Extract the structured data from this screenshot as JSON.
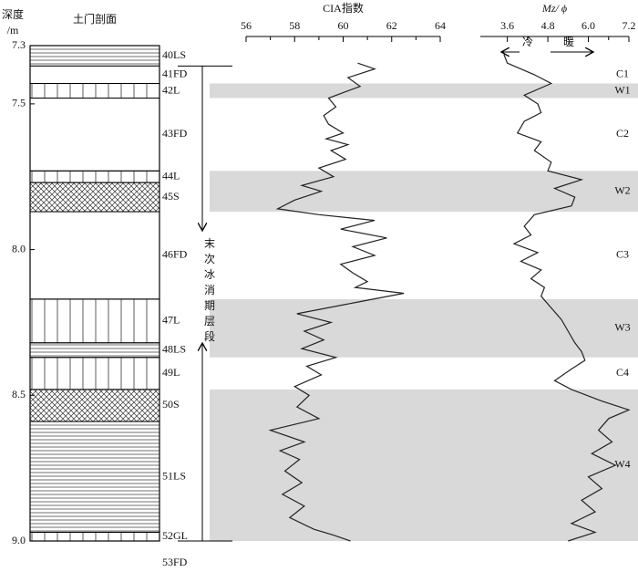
{
  "chart_data": [
    {
      "type": "column",
      "title": "土门剖面",
      "ylabel_lines": [
        "深度",
        "/m"
      ],
      "ylim": [
        7.3,
        9.0
      ],
      "yticks": [
        7.3,
        7.5,
        {
          "value": 8,
          "label": "8.0"
        },
        8.5,
        {
          "value": 9,
          "label": "9.0"
        }
      ],
      "layers": [
        {
          "name": "40LS",
          "top": 7.3,
          "bottom": 7.37,
          "pattern": "lines-h"
        },
        {
          "name": "41FD",
          "top": 7.37,
          "bottom": 7.43,
          "pattern": "none"
        },
        {
          "name": "42L",
          "top": 7.43,
          "bottom": 7.48,
          "pattern": "lines-v"
        },
        {
          "name": "43FD",
          "top": 7.48,
          "bottom": 7.73,
          "pattern": "none"
        },
        {
          "name": "44L",
          "top": 7.73,
          "bottom": 7.77,
          "pattern": "lines-v"
        },
        {
          "name": "45S",
          "top": 7.77,
          "bottom": 7.87,
          "pattern": "cross"
        },
        {
          "name": "46FD",
          "top": 7.87,
          "bottom": 8.17,
          "pattern": "none"
        },
        {
          "name": "47L",
          "top": 8.17,
          "bottom": 8.32,
          "pattern": "lines-v"
        },
        {
          "name": "48LS",
          "top": 8.32,
          "bottom": 8.37,
          "pattern": "lines-h"
        },
        {
          "name": "49L",
          "top": 8.37,
          "bottom": 8.48,
          "pattern": "lines-v"
        },
        {
          "name": "50S",
          "top": 8.48,
          "bottom": 8.59,
          "pattern": "cross"
        },
        {
          "name": "51LS",
          "top": 8.59,
          "bottom": 8.97,
          "pattern": "lines-h"
        },
        {
          "name": "52GL",
          "top": 8.97,
          "bottom": 9.0,
          "pattern": "lines-v"
        },
        {
          "name": "53FD",
          "top": 9.0,
          "bottom": null,
          "pattern": "none"
        }
      ],
      "zones": [
        {
          "name": "C1",
          "top": 7.37,
          "bottom": 7.43,
          "shaded": false
        },
        {
          "name": "W1",
          "top": 7.43,
          "bottom": 7.48,
          "shaded": true
        },
        {
          "name": "C2",
          "top": 7.48,
          "bottom": 7.73,
          "shaded": false
        },
        {
          "name": "W2",
          "top": 7.73,
          "bottom": 7.87,
          "shaded": true
        },
        {
          "name": "C3",
          "top": 7.87,
          "bottom": 8.17,
          "shaded": false
        },
        {
          "name": "W3",
          "top": 8.17,
          "bottom": 8.37,
          "shaded": true
        },
        {
          "name": "C4",
          "top": 8.37,
          "bottom": 8.48,
          "shaded": false
        },
        {
          "name": "W4",
          "top": 8.48,
          "bottom": 9.0,
          "shaded": true
        }
      ],
      "interval": {
        "label": "末次冰消期层段",
        "top": 7.37,
        "bottom": 9.0
      },
      "shade_color": "#d9d9d9"
    },
    {
      "type": "line",
      "title": "CIA指数",
      "color": "#222",
      "xlim": [
        56,
        64
      ],
      "xticks": [
        56,
        58,
        60,
        62,
        64
      ],
      "x": [
        7.36,
        7.38,
        7.41,
        7.44,
        7.48,
        7.51,
        7.54,
        7.57,
        7.6,
        7.62,
        7.64,
        7.66,
        7.69,
        7.72,
        7.75,
        7.78,
        7.8,
        7.83,
        7.86,
        7.88,
        7.9,
        7.93,
        7.96,
        7.99,
        8.02,
        8.05,
        8.08,
        8.11,
        8.13,
        8.15,
        8.18,
        8.22,
        8.25,
        8.28,
        8.31,
        8.34,
        8.37,
        8.4,
        8.43,
        8.47,
        8.5,
        8.54,
        8.58,
        8.62,
        8.66,
        8.69,
        8.72,
        8.76,
        8.8,
        8.84,
        8.88,
        8.92,
        8.96,
        8.98,
        9.0
      ],
      "values": [
        60.6,
        61.3,
        60.2,
        60.7,
        59.4,
        59.7,
        59.2,
        59.4,
        60.0,
        59.3,
        60.2,
        59.5,
        60.1,
        59.0,
        59.6,
        58.3,
        59.1,
        58.0,
        57.3,
        59.0,
        61.3,
        59.9,
        61.8,
        60.4,
        61.3,
        59.9,
        60.4,
        61.0,
        60.5,
        62.5,
        60.6,
        58.1,
        59.5,
        58.4,
        59.2,
        58.3,
        59.7,
        58.5,
        59.1,
        58.0,
        58.6,
        58.1,
        59.0,
        57.0,
        58.4,
        57.4,
        58.2,
        57.6,
        58.3,
        57.5,
        58.4,
        57.8,
        58.8,
        59.6,
        60.3
      ]
    },
    {
      "type": "line",
      "title": "Mz/ ϕ",
      "color": "#222",
      "xlim": [
        2.8,
        7.2
      ],
      "xticks": [
        3.6,
        4.8,
        {
          "value": 6,
          "label": "6.0"
        },
        7.2
      ],
      "annotations": [
        "冷",
        "暖"
      ],
      "x": [
        7.33,
        7.36,
        7.4,
        7.43,
        7.47,
        7.5,
        7.53,
        7.56,
        7.6,
        7.63,
        7.66,
        7.7,
        7.73,
        7.76,
        7.79,
        7.82,
        7.85,
        7.88,
        7.92,
        7.95,
        7.98,
        8.01,
        8.04,
        8.07,
        8.1,
        8.13,
        8.16,
        8.2,
        8.24,
        8.28,
        8.32,
        8.35,
        8.38,
        8.41,
        8.45,
        8.48,
        8.52,
        8.55,
        8.58,
        8.62,
        8.66,
        8.7,
        8.74,
        8.78,
        8.82,
        8.86,
        8.9,
        8.94,
        8.97,
        9.0
      ],
      "values": [
        3.5,
        3.6,
        4.4,
        4.9,
        4.1,
        4.5,
        4.6,
        4.1,
        3.9,
        4.6,
        4.4,
        4.9,
        4.8,
        5.8,
        5.0,
        5.6,
        5.5,
        4.4,
        4.1,
        4.3,
        3.8,
        4.5,
        4.0,
        4.6,
        4.3,
        4.7,
        4.6,
        4.9,
        5.2,
        5.4,
        5.6,
        5.8,
        5.9,
        5.5,
        5.0,
        5.5,
        6.4,
        7.2,
        6.6,
        6.3,
        6.7,
        6.1,
        6.8,
        6.0,
        6.4,
        5.8,
        6.2,
        5.5,
        6.2,
        5.4
      ]
    }
  ]
}
